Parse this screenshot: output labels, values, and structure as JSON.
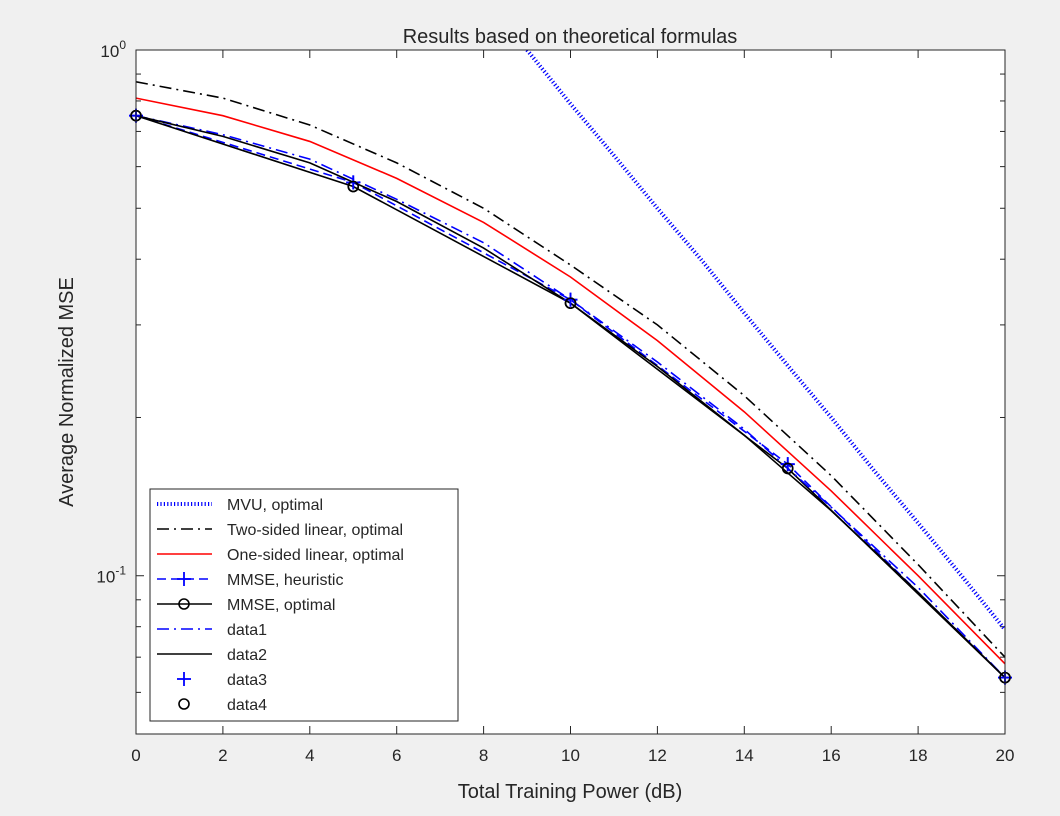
{
  "chart_data": {
    "type": "line",
    "title": "Results based on theoretical formulas",
    "xlabel": "Total Training Power (dB)",
    "ylabel": "Average Normalized MSE",
    "xlim": [
      0,
      20
    ],
    "ylim": [
      0.05,
      1
    ],
    "yscale": "log",
    "grid": false,
    "legend_position": "bottom-left",
    "xticks": [
      0,
      2,
      4,
      6,
      8,
      10,
      12,
      14,
      16,
      18,
      20
    ],
    "xtick_labels": [
      "0",
      "2",
      "4",
      "6",
      "8",
      "10",
      "12",
      "14",
      "16",
      "18",
      "20"
    ],
    "ytick_labels": [
      {
        "value": 1,
        "base": "10",
        "exp": "0"
      },
      {
        "value": 0.1,
        "base": "10",
        "exp": "-1"
      }
    ],
    "series": [
      {
        "name": "MVU, optimal",
        "color": "#0000ff",
        "line": "dotted",
        "marker": "none",
        "x": [
          9,
          10,
          11,
          12,
          13,
          14,
          15,
          16,
          17,
          18,
          19,
          20
        ],
        "y": [
          1.0,
          0.79,
          0.63,
          0.5,
          0.4,
          0.316,
          0.251,
          0.2,
          0.158,
          0.126,
          0.1,
          0.079
        ]
      },
      {
        "name": "Two-sided linear, optimal",
        "color": "#000000",
        "line": "dashdot",
        "marker": "none",
        "x": [
          0,
          2,
          4,
          6,
          8,
          10,
          12,
          14,
          16,
          18,
          20
        ],
        "y": [
          0.87,
          0.81,
          0.72,
          0.61,
          0.5,
          0.39,
          0.3,
          0.22,
          0.155,
          0.105,
          0.07
        ]
      },
      {
        "name": "One-sided linear, optimal",
        "color": "#ff0000",
        "line": "solid",
        "marker": "none",
        "x": [
          0,
          2,
          4,
          6,
          8,
          10,
          12,
          14,
          16,
          18,
          20
        ],
        "y": [
          0.81,
          0.75,
          0.67,
          0.57,
          0.47,
          0.37,
          0.28,
          0.205,
          0.145,
          0.1,
          0.068
        ]
      },
      {
        "name": "MMSE, heuristic",
        "color": "#0000ff",
        "line": "dashed",
        "marker": "plus",
        "x": [
          0,
          5,
          10,
          15,
          20
        ],
        "y": [
          0.75,
          0.56,
          0.335,
          0.163,
          0.064
        ]
      },
      {
        "name": "MMSE, optimal",
        "color": "#000000",
        "line": "solid",
        "marker": "circle",
        "x": [
          0,
          5,
          10,
          15,
          20
        ],
        "y": [
          0.75,
          0.55,
          0.33,
          0.16,
          0.064
        ]
      },
      {
        "name": "data1",
        "color": "#0000ff",
        "line": "dashdot",
        "marker": "none",
        "x": [
          0,
          2,
          4,
          6,
          8,
          10,
          12,
          14,
          16,
          18,
          20
        ],
        "y": [
          0.75,
          0.69,
          0.62,
          0.52,
          0.43,
          0.335,
          0.255,
          0.19,
          0.135,
          0.095,
          0.064
        ]
      },
      {
        "name": "data2",
        "color": "#000000",
        "line": "solid",
        "marker": "none",
        "x": [
          0,
          2,
          4,
          6,
          8,
          10,
          12,
          14,
          16,
          18,
          20
        ],
        "y": [
          0.75,
          0.685,
          0.61,
          0.515,
          0.42,
          0.33,
          0.25,
          0.185,
          0.133,
          0.093,
          0.064
        ]
      },
      {
        "name": "data3",
        "color": "#0000ff",
        "line": "none",
        "marker": "plus",
        "x": [
          0,
          5,
          10,
          15,
          20
        ],
        "y": [
          0.75,
          0.56,
          0.335,
          0.163,
          0.064
        ]
      },
      {
        "name": "data4",
        "color": "#000000",
        "line": "none",
        "marker": "circle",
        "x": [
          0,
          5,
          10,
          15,
          20
        ],
        "y": [
          0.75,
          0.55,
          0.33,
          0.16,
          0.064
        ]
      }
    ]
  }
}
